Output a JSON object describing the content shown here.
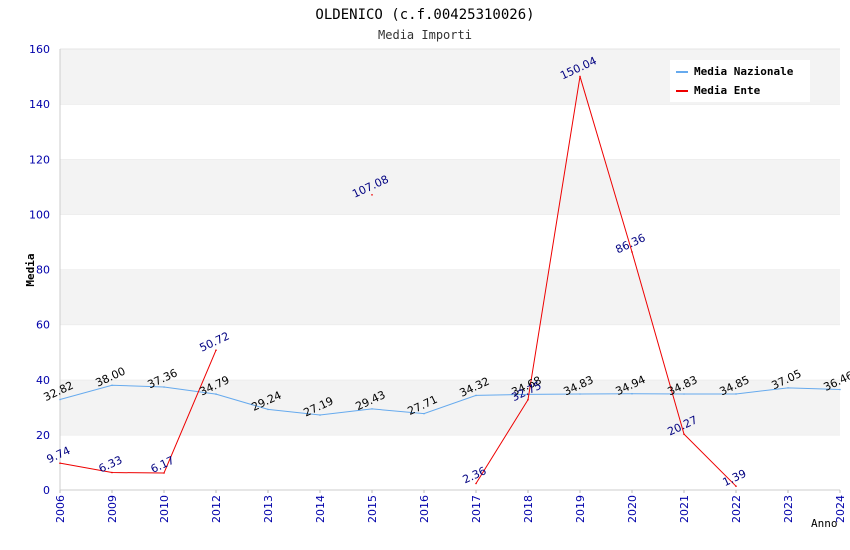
{
  "chart_data": {
    "type": "line",
    "title": "OLDENICO (c.f.00425310026)",
    "subtitle": "Media Importi",
    "xlabel": "Anno",
    "ylabel": "Media",
    "ylim": [
      0,
      160
    ],
    "yticks": [
      "0",
      "20",
      "40",
      "60",
      "80",
      "100",
      "120",
      "140",
      "160"
    ],
    "categories": [
      "2006",
      "2009",
      "2010",
      "2012",
      "2013",
      "2014",
      "2015",
      "2016",
      "2017",
      "2018",
      "2019",
      "2020",
      "2021",
      "2022",
      "2023",
      "2024"
    ],
    "grid": true,
    "legend_position": "top-right",
    "series": [
      {
        "name": "Media Nazionale",
        "color": "#66aaee",
        "label_color": "#000000",
        "values": [
          32.82,
          38.0,
          37.36,
          34.79,
          29.24,
          27.19,
          29.43,
          27.71,
          34.32,
          34.68,
          34.83,
          34.94,
          34.83,
          34.85,
          37.05,
          36.46
        ],
        "labels": [
          "32.82",
          "38.00",
          "37.36",
          "34.79",
          "29.24",
          "27.19",
          "29.43",
          "27.71",
          "34.32",
          "34.68",
          "34.83",
          "34.94",
          "34.83",
          "34.85",
          "37.05",
          "36.46"
        ]
      },
      {
        "name": "Media Ente",
        "color": "#ee0000",
        "label_color": "#000080",
        "values": [
          9.74,
          6.33,
          6.17,
          50.72,
          null,
          null,
          107.08,
          null,
          2.36,
          32.75,
          150.04,
          86.36,
          20.27,
          1.39,
          null,
          null
        ],
        "labels": [
          "9.74",
          "6.33",
          "6.17",
          "50.72",
          "",
          "",
          "107.08",
          "",
          "2.36",
          "32.75",
          "150.04",
          "86.36",
          "20.27",
          "1.39",
          "",
          ""
        ]
      }
    ]
  }
}
